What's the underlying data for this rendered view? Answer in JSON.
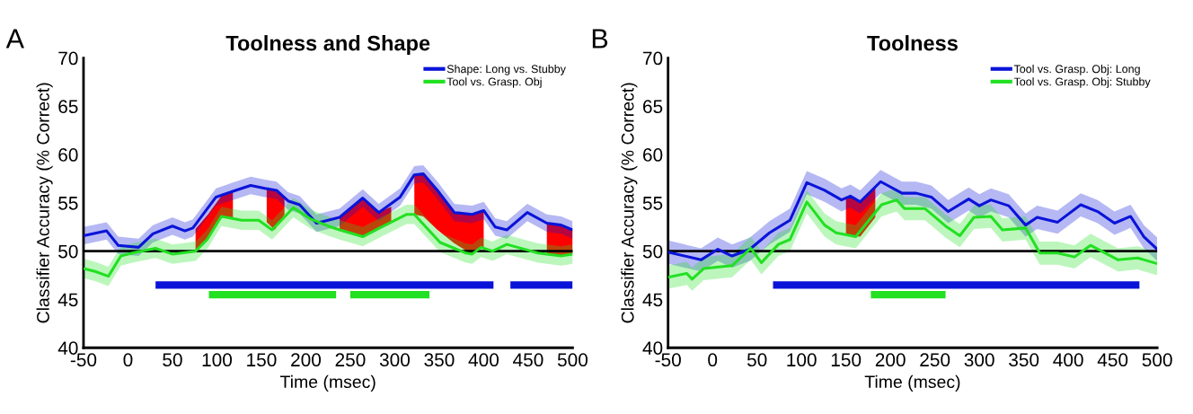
{
  "chart_data": [
    {
      "type": "line",
      "title": "Toolness and Shape",
      "xlabel": "Time (msec)",
      "ylabel": "Classifier Accuracy (% Correct)",
      "annotations": [
        "A"
      ],
      "xlim": [
        -50,
        500
      ],
      "xticks": [
        -50,
        0,
        50,
        100,
        150,
        200,
        250,
        300,
        350,
        400,
        450,
        500
      ],
      "ylim": [
        40,
        70
      ],
      "yticks": [
        40,
        45,
        50,
        55,
        60,
        65,
        70
      ],
      "grid": false,
      "legend": "top right",
      "ref_lines": [
        {
          "axis": "y",
          "value": 50,
          "color": "#000000"
        }
      ],
      "series": [
        {
          "type": "line",
          "color": "#ff0000",
          "x": [
            76,
            90,
            105,
            118
          ],
          "values": [
            null,
            null,
            null,
            null
          ],
          "upper": [
            52.3,
            53.8,
            55.7,
            56.2
          ],
          "lower": [
            50.0,
            51.2,
            53.6,
            53.3
          ]
        },
        {
          "type": "line",
          "color": "#ff0000",
          "x": [
            156,
            165,
            176
          ],
          "values": [
            null,
            null,
            null
          ],
          "upper": [
            56.5,
            56.3,
            55.6
          ],
          "lower": [
            53.0,
            52.2,
            53.8
          ]
        },
        {
          "type": "line",
          "color": "#ff0000",
          "x": [
            238,
            264,
            281,
            296
          ],
          "values": [
            null,
            null,
            null,
            null
          ],
          "upper": [
            53.5,
            55.5,
            54.0,
            54.6
          ],
          "lower": [
            52.2,
            51.5,
            52.4,
            53.0
          ]
        },
        {
          "type": "line",
          "color": "#ff0000",
          "x": [
            322,
            332,
            348,
            367,
            387,
            400
          ],
          "values": [
            null,
            null,
            null,
            null,
            null,
            null
          ],
          "upper": [
            57.9,
            58.0,
            56.3,
            54.0,
            53.8,
            54.2
          ],
          "lower": [
            53.8,
            53.6,
            52.2,
            50.8,
            49.7,
            50.4
          ]
        },
        {
          "type": "line",
          "color": "#ff0000",
          "x": [
            471,
            487,
            500
          ],
          "values": [
            null,
            null,
            null
          ],
          "upper": [
            52.9,
            52.7,
            52.2
          ],
          "lower": [
            49.7,
            49.5,
            49.7
          ]
        },
        {
          "name": "Shape: Long vs. Stubby",
          "color": "#0a14d8",
          "x": [
            -50,
            -24,
            -11,
            12,
            28,
            50,
            64,
            73,
            99,
            118,
            138,
            154,
            167,
            180,
            193,
            212,
            225,
            238,
            264,
            282,
            306,
            322,
            332,
            348,
            367,
            387,
            400,
            413,
            426,
            449,
            471,
            487,
            500
          ],
          "values": [
            51.6,
            52.1,
            50.6,
            50.4,
            51.8,
            52.6,
            52.1,
            52.4,
            55.6,
            56.2,
            56.8,
            56.5,
            56.3,
            55.2,
            54.8,
            52.9,
            53.2,
            53.5,
            55.5,
            54.0,
            55.6,
            57.9,
            58.0,
            56.3,
            54.0,
            53.8,
            54.2,
            52.5,
            52.2,
            54.0,
            52.9,
            52.7,
            52.2
          ],
          "lower": [
            50.7,
            51.2,
            49.7,
            49.5,
            50.9,
            51.7,
            51.2,
            51.5,
            54.7,
            55.3,
            55.9,
            55.6,
            55.4,
            54.3,
            53.9,
            52.0,
            52.3,
            52.6,
            54.6,
            53.1,
            54.7,
            57.0,
            57.1,
            55.4,
            53.1,
            52.9,
            53.3,
            51.6,
            51.3,
            53.1,
            52.0,
            51.8,
            51.3
          ],
          "upper": [
            52.5,
            53.0,
            51.5,
            51.3,
            52.7,
            53.5,
            53.0,
            53.3,
            56.5,
            57.1,
            57.7,
            57.4,
            57.2,
            56.1,
            55.7,
            53.8,
            54.1,
            54.4,
            56.4,
            54.9,
            56.5,
            58.8,
            58.9,
            57.2,
            54.9,
            54.7,
            55.1,
            53.4,
            53.1,
            54.9,
            53.8,
            53.6,
            53.1
          ]
        },
        {
          "name": "Tool vs. Grasp. Obj",
          "color": "#22e022",
          "x": [
            -50,
            -37,
            -22,
            -8,
            5,
            31,
            50,
            76,
            89,
            105,
            128,
            147,
            162,
            186,
            206,
            225,
            238,
            264,
            283,
            313,
            322,
            351,
            380,
            387,
            397,
            410,
            426,
            461,
            487,
            500
          ],
          "values": [
            48.2,
            47.9,
            47.4,
            49.5,
            49.8,
            50.3,
            49.7,
            50.0,
            51.2,
            53.6,
            53.2,
            53.2,
            52.2,
            54.5,
            53.3,
            52.6,
            52.2,
            51.5,
            52.4,
            53.8,
            53.8,
            50.9,
            49.8,
            49.7,
            50.4,
            50.0,
            50.7,
            49.8,
            49.5,
            49.7
          ],
          "lower": [
            47.2,
            46.9,
            46.4,
            48.5,
            48.8,
            49.3,
            48.7,
            49.0,
            50.2,
            52.6,
            52.2,
            52.2,
            51.2,
            53.5,
            52.3,
            51.6,
            51.2,
            50.5,
            51.4,
            52.8,
            52.8,
            49.9,
            48.8,
            48.7,
            49.4,
            49.0,
            49.7,
            48.8,
            48.5,
            48.7
          ],
          "upper": [
            49.2,
            48.9,
            48.4,
            50.5,
            50.8,
            51.3,
            50.7,
            51.0,
            52.2,
            54.6,
            54.2,
            54.2,
            53.2,
            55.5,
            54.3,
            53.6,
            53.2,
            52.5,
            53.4,
            54.8,
            54.8,
            51.9,
            50.8,
            50.7,
            51.4,
            51.0,
            51.7,
            50.8,
            50.5,
            50.7
          ]
        },
        {
          "type": "line",
          "color": "#0a14d8",
          "x": [
            31,
            411,
            420,
            430,
            500
          ],
          "values": [
            46.5,
            46.5,
            null,
            46.5,
            46.5
          ]
        },
        {
          "type": "line",
          "color": "#22e022",
          "x": [
            91,
            234,
            242,
            250,
            339
          ],
          "values": [
            45.5,
            45.5,
            null,
            45.5,
            45.5
          ]
        }
      ]
    },
    {
      "type": "line",
      "title": "Toolness",
      "xlabel": "Time (msec)",
      "ylabel": "Classifier Accuracy (% Correct)",
      "annotations": [
        "B"
      ],
      "xlim": [
        -50,
        500
      ],
      "xticks": [
        -50,
        0,
        50,
        100,
        150,
        200,
        250,
        300,
        350,
        400,
        450,
        500
      ],
      "ylim": [
        40,
        70
      ],
      "yticks": [
        40,
        45,
        50,
        55,
        60,
        65,
        70
      ],
      "grid": false,
      "legend": "top right",
      "ref_lines": [
        {
          "axis": "y",
          "value": 50,
          "color": "#000000"
        }
      ],
      "series": [
        {
          "type": "line",
          "color": "#ff0000",
          "x": [
            150,
            155,
            166,
            183
          ],
          "values": [
            null,
            null,
            null,
            null
          ],
          "upper": [
            55.5,
            55.7,
            55.1,
            56.7
          ],
          "lower": [
            51.8,
            51.6,
            51.5,
            53.5
          ]
        },
        {
          "name": "Tool vs. Grasp. Obj: Long",
          "color": "#0a14d8",
          "x": [
            -50,
            -13,
            6,
            22,
            42,
            64,
            87,
            106,
            126,
            145,
            155,
            166,
            189,
            213,
            229,
            246,
            265,
            288,
            300,
            313,
            333,
            352,
            365,
            388,
            414,
            433,
            452,
            470,
            485,
            500
          ],
          "values": [
            49.9,
            49.1,
            50.2,
            49.5,
            50.2,
            51.9,
            53.2,
            57.1,
            56.3,
            55.3,
            55.7,
            55.1,
            57.2,
            56.0,
            56.0,
            55.6,
            54.1,
            55.4,
            54.7,
            55.3,
            54.7,
            52.7,
            53.5,
            53.0,
            54.8,
            54.1,
            52.9,
            53.6,
            51.5,
            50.2
          ],
          "lower": [
            48.7,
            47.9,
            49.0,
            48.3,
            49.0,
            50.7,
            52.0,
            55.9,
            55.1,
            54.1,
            54.5,
            53.9,
            56.0,
            54.8,
            54.8,
            54.4,
            52.9,
            54.2,
            53.5,
            54.1,
            53.5,
            51.5,
            52.3,
            51.8,
            53.6,
            52.9,
            51.7,
            52.4,
            50.3,
            49.0
          ],
          "upper": [
            51.1,
            50.3,
            51.4,
            50.7,
            51.4,
            53.1,
            54.4,
            58.3,
            57.5,
            56.5,
            56.9,
            56.3,
            58.4,
            57.2,
            57.2,
            56.8,
            55.3,
            56.6,
            55.9,
            56.5,
            55.9,
            53.9,
            54.7,
            54.2,
            56.0,
            55.3,
            54.1,
            54.8,
            52.7,
            51.4
          ]
        },
        {
          "name": "Tool vs. Grasp. Obj: Stubby",
          "color": "#22e022",
          "x": [
            -50,
            -29,
            -23,
            -10,
            22,
            43,
            55,
            74,
            87,
            106,
            126,
            139,
            161,
            190,
            207,
            216,
            239,
            262,
            278,
            294,
            313,
            326,
            352,
            368,
            388,
            407,
            425,
            456,
            478,
            500
          ],
          "values": [
            47.3,
            47.7,
            47.1,
            48.2,
            48.5,
            50.3,
            48.8,
            50.7,
            51.2,
            55.1,
            52.7,
            51.9,
            51.5,
            54.8,
            55.3,
            54.4,
            54.4,
            52.6,
            51.6,
            53.5,
            53.6,
            52.2,
            52.4,
            49.8,
            49.8,
            49.4,
            50.6,
            49.1,
            49.3,
            48.7
          ],
          "lower": [
            46.1,
            46.5,
            45.9,
            47.0,
            47.3,
            49.1,
            47.6,
            49.5,
            50.0,
            53.9,
            51.5,
            50.7,
            50.3,
            53.6,
            54.1,
            53.2,
            53.2,
            51.4,
            50.4,
            52.3,
            52.4,
            51.0,
            51.2,
            48.6,
            48.6,
            48.2,
            49.4,
            47.9,
            48.1,
            47.5
          ],
          "upper": [
            48.5,
            48.9,
            48.3,
            49.4,
            49.7,
            51.5,
            50.0,
            51.9,
            52.4,
            56.3,
            53.9,
            53.1,
            52.7,
            56.0,
            56.5,
            55.6,
            55.6,
            53.8,
            52.8,
            54.7,
            54.8,
            53.4,
            53.6,
            51.0,
            51.0,
            50.6,
            51.8,
            50.3,
            50.5,
            49.9
          ]
        },
        {
          "type": "line",
          "color": "#0a14d8",
          "x": [
            68,
            480
          ],
          "values": [
            46.5,
            46.5
          ]
        },
        {
          "type": "line",
          "color": "#22e022",
          "x": [
            178,
            262
          ],
          "values": [
            45.5,
            45.5
          ]
        }
      ]
    }
  ]
}
